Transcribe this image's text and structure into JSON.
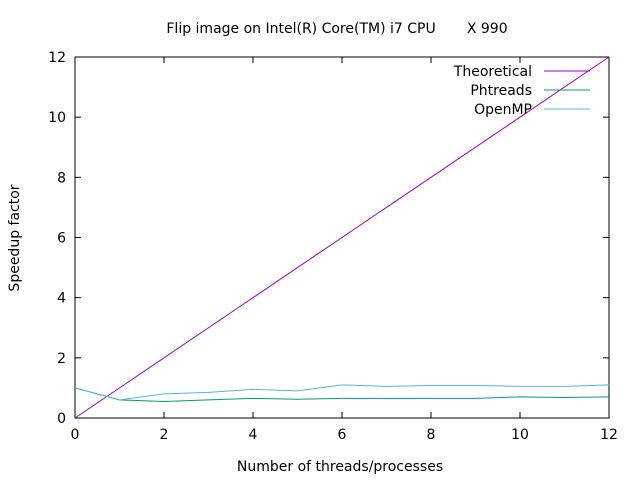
{
  "chart_data": {
    "type": "line",
    "title": "Flip image on Intel(R) Core(TM) i7 CPU       X 990",
    "xlabel": "Number of threads/processes",
    "ylabel": "Speedup factor",
    "xlim": [
      0,
      12
    ],
    "ylim": [
      0,
      12
    ],
    "xticks": [
      0,
      2,
      4,
      6,
      8,
      10,
      12
    ],
    "yticks": [
      0,
      2,
      4,
      6,
      8,
      10,
      12
    ],
    "grid": false,
    "legend_position": "top-right",
    "series": [
      {
        "name": "Theoretical",
        "color": "#9400d3",
        "x": [
          0,
          12
        ],
        "y": [
          0,
          12
        ]
      },
      {
        "name": "Phtreads",
        "color": "#009e73",
        "x": [
          0,
          1,
          2,
          3,
          4,
          5,
          6,
          7,
          8,
          9,
          10,
          11,
          12
        ],
        "y": [
          1.0,
          0.6,
          0.55,
          0.6,
          0.65,
          0.62,
          0.65,
          0.65,
          0.65,
          0.65,
          0.7,
          0.68,
          0.7
        ]
      },
      {
        "name": "OpenMP",
        "color": "#56b4e9",
        "x": [
          0,
          1,
          2,
          3,
          4,
          5,
          6,
          7,
          8,
          9,
          10,
          11,
          12
        ],
        "y": [
          1.0,
          0.6,
          0.8,
          0.85,
          0.95,
          0.9,
          1.1,
          1.05,
          1.08,
          1.08,
          1.05,
          1.05,
          1.1
        ]
      }
    ]
  }
}
